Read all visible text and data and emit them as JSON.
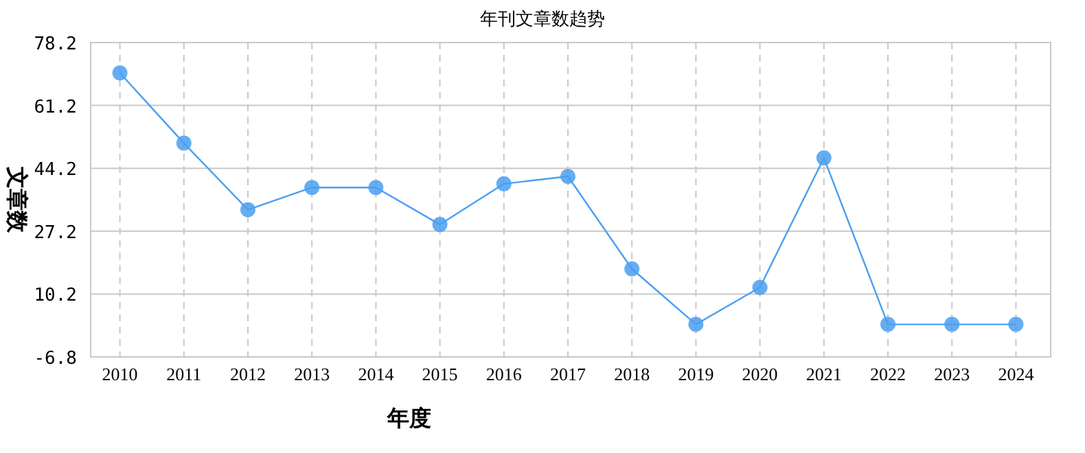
{
  "chart_data": {
    "type": "line",
    "title": "年刊文章数趋势",
    "xlabel": "年度",
    "ylabel": "文章数",
    "categories": [
      "2010",
      "2011",
      "2012",
      "2013",
      "2014",
      "2015",
      "2016",
      "2017",
      "2018",
      "2019",
      "2020",
      "2021",
      "2022",
      "2023",
      "2024"
    ],
    "series": [
      {
        "color": "#4a9ff0",
        "values": [
          70,
          51,
          33,
          39,
          39,
          29,
          40,
          42,
          17,
          2,
          12,
          47,
          2,
          2,
          2
        ]
      }
    ],
    "ylim": [
      -6.8,
      78.2
    ],
    "yticks": [
      -6.8,
      10.2,
      27.2,
      44.2,
      61.2,
      78.2
    ],
    "grid": true,
    "marker": "circle",
    "line_style": "solid"
  }
}
